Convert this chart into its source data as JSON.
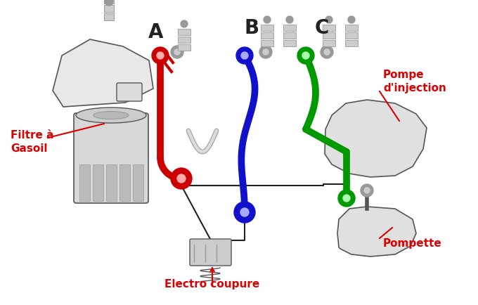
{
  "bg_color": "#ffffff",
  "pipe_A_color": "#cc0000",
  "pipe_B_color": "#1111cc",
  "pipe_C_color": "#009900",
  "pipe_lw": 7,
  "label_A": "A",
  "label_B": "B",
  "label_C": "C",
  "label_filtre": "Filtre à\nGasoil",
  "label_pompe": "Pompe\nd'injection",
  "label_pompette": "Pompette",
  "label_electro": "Electro coupure",
  "red_label": "#dd0000",
  "black": "#222222",
  "grey_dark": "#555555",
  "grey_mid": "#999999",
  "grey_light": "#cccccc"
}
